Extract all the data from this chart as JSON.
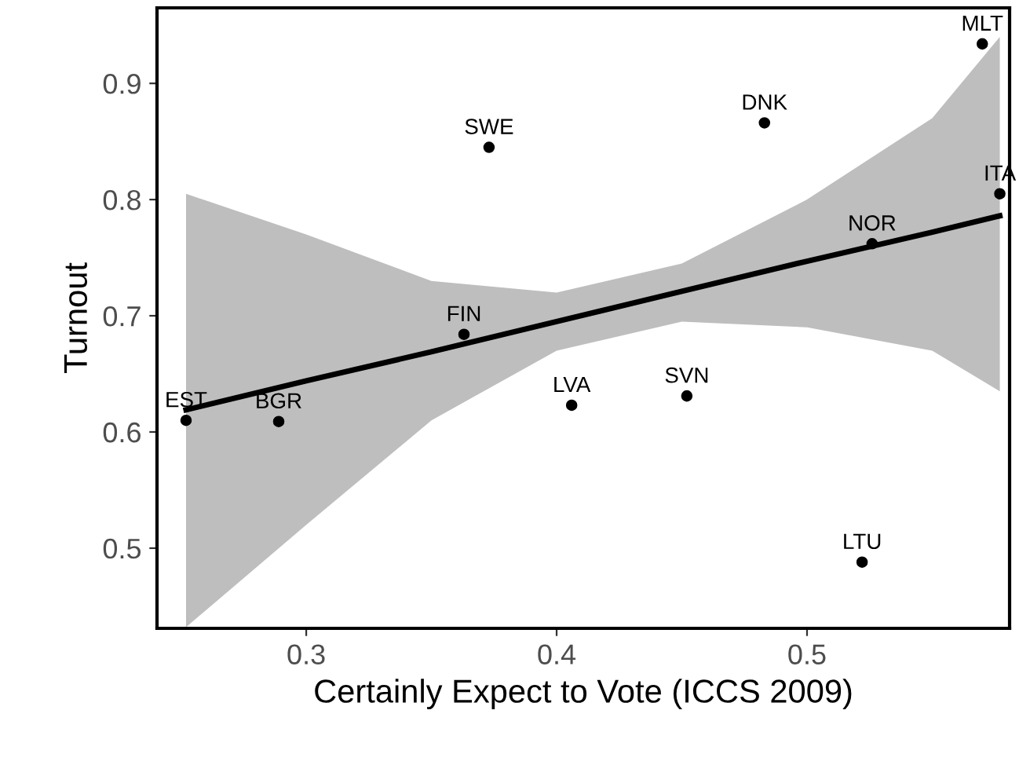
{
  "chart_data": {
    "type": "scatter",
    "xlabel": "Certainly Expect to Vote (ICCS 2009)",
    "ylabel": "Turnout",
    "xlim": [
      0.2404,
      0.5809
    ],
    "ylim": [
      0.431,
      0.965
    ],
    "xticks": [
      0.3,
      0.4,
      0.5
    ],
    "yticks": [
      0.5,
      0.6,
      0.7,
      0.8,
      0.9
    ],
    "grid": false,
    "legend": false,
    "series": [
      {
        "color": "#000000",
        "marker": "circle",
        "x": [
          0.57,
          0.483,
          0.373,
          0.577,
          0.526,
          0.363,
          0.252,
          0.289,
          0.406,
          0.452,
          0.522
        ],
        "values": [
          0.934,
          0.866,
          0.845,
          0.805,
          0.762,
          0.684,
          0.61,
          0.609,
          0.623,
          0.631,
          0.488
        ]
      },
      {
        "type": "line",
        "color": "#000000",
        "line_style": "solid",
        "x": [
          0.252,
          0.3,
          0.35,
          0.4,
          0.45,
          0.5,
          0.55,
          0.577
        ],
        "values": [
          0.619,
          0.644,
          0.669,
          0.695,
          0.721,
          0.747,
          0.772,
          0.786
        ],
        "lower": [
          0.432,
          0.52,
          0.61,
          0.67,
          0.695,
          0.69,
          0.67,
          0.635
        ],
        "upper": [
          0.805,
          0.77,
          0.73,
          0.72,
          0.745,
          0.8,
          0.87,
          0.94
        ]
      }
    ],
    "annotations": [
      {
        "text": "MLT",
        "x": 0.57,
        "y": 0.934
      },
      {
        "text": "DNK",
        "x": 0.483,
        "y": 0.866
      },
      {
        "text": "SWE",
        "x": 0.373,
        "y": 0.845
      },
      {
        "text": "ITA",
        "x": 0.577,
        "y": 0.805
      },
      {
        "text": "NOR",
        "x": 0.526,
        "y": 0.762
      },
      {
        "text": "FIN",
        "x": 0.363,
        "y": 0.684
      },
      {
        "text": "EST",
        "x": 0.252,
        "y": 0.61
      },
      {
        "text": "BGR",
        "x": 0.289,
        "y": 0.609
      },
      {
        "text": "LVA",
        "x": 0.406,
        "y": 0.623
      },
      {
        "text": "SVN",
        "x": 0.452,
        "y": 0.631
      },
      {
        "text": "LTU",
        "x": 0.522,
        "y": 0.488
      }
    ]
  }
}
